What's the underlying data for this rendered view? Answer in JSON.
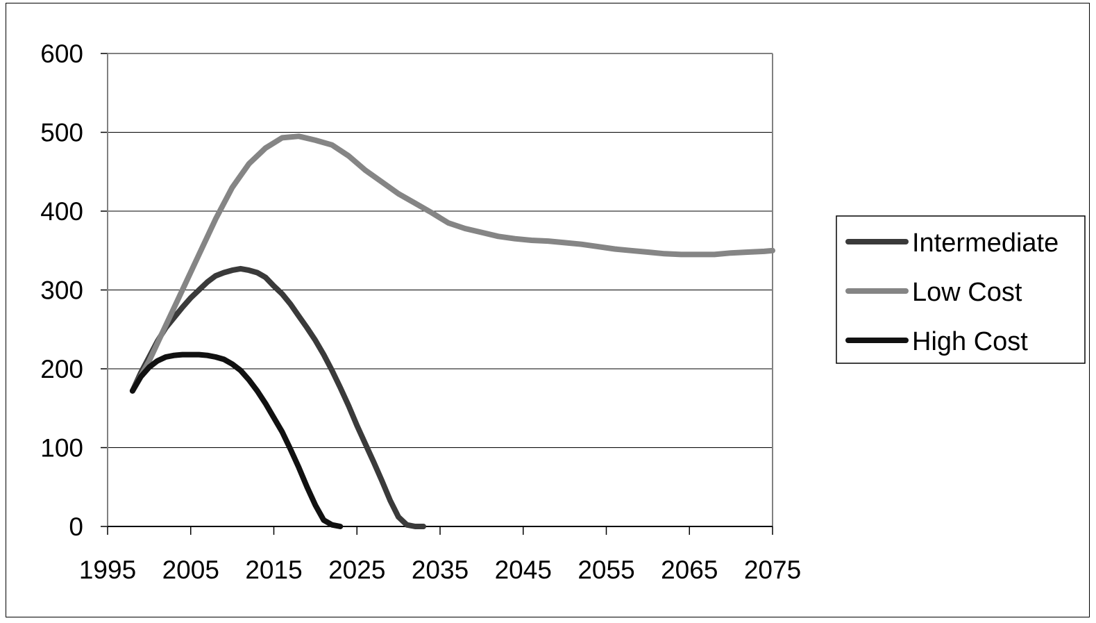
{
  "chart_data": {
    "type": "line",
    "title": "",
    "xlabel": "",
    "ylabel": "",
    "xlim": [
      1995,
      2075
    ],
    "ylim": [
      0,
      600
    ],
    "x_ticks": [
      "1995",
      "2005",
      "2015",
      "2025",
      "2035",
      "2045",
      "2055",
      "2065",
      "2075"
    ],
    "y_ticks": [
      "0",
      "100",
      "200",
      "300",
      "400",
      "500",
      "600"
    ],
    "grid": "horizontal",
    "legend_position": "right",
    "series": [
      {
        "name": "Intermediate",
        "color": "#3a3a3a",
        "x": [
          1998,
          1999,
          2000,
          2001,
          2002,
          2003,
          2004,
          2005,
          2006,
          2007,
          2008,
          2009,
          2010,
          2011,
          2012,
          2013,
          2014,
          2015,
          2016,
          2017,
          2018,
          2019,
          2020,
          2021,
          2022,
          2023,
          2024,
          2025,
          2026,
          2027,
          2028,
          2029,
          2030,
          2031,
          2032,
          2033
        ],
        "y": [
          172,
          195,
          215,
          235,
          252,
          265,
          278,
          290,
          300,
          310,
          318,
          322,
          325,
          327,
          325,
          322,
          316,
          305,
          295,
          282,
          267,
          252,
          236,
          218,
          198,
          176,
          153,
          128,
          105,
          82,
          58,
          33,
          12,
          2,
          0,
          0
        ]
      },
      {
        "name": "Low Cost",
        "color": "#858585",
        "x": [
          1998,
          2000,
          2002,
          2004,
          2006,
          2008,
          2010,
          2012,
          2014,
          2016,
          2018,
          2020,
          2022,
          2024,
          2026,
          2028,
          2030,
          2032,
          2034,
          2036,
          2038,
          2040,
          2042,
          2044,
          2046,
          2048,
          2050,
          2052,
          2054,
          2056,
          2058,
          2060,
          2062,
          2064,
          2066,
          2068,
          2070,
          2072,
          2074,
          2075
        ],
        "y": [
          172,
          210,
          255,
          300,
          345,
          390,
          430,
          460,
          480,
          493,
          495,
          490,
          484,
          470,
          452,
          437,
          422,
          410,
          398,
          385,
          378,
          373,
          368,
          365,
          363,
          362,
          360,
          358,
          355,
          352,
          350,
          348,
          346,
          345,
          345,
          345,
          347,
          348,
          349,
          350
        ]
      },
      {
        "name": "High Cost",
        "color": "#111111",
        "x": [
          1998,
          1999,
          2000,
          2001,
          2002,
          2003,
          2004,
          2005,
          2006,
          2007,
          2008,
          2009,
          2010,
          2011,
          2012,
          2013,
          2014,
          2015,
          2016,
          2017,
          2018,
          2019,
          2020,
          2021,
          2022,
          2023
        ],
        "y": [
          172,
          190,
          202,
          210,
          215,
          217,
          218,
          218,
          218,
          217,
          215,
          212,
          206,
          198,
          186,
          172,
          156,
          138,
          120,
          98,
          75,
          50,
          27,
          8,
          2,
          0
        ]
      }
    ]
  }
}
